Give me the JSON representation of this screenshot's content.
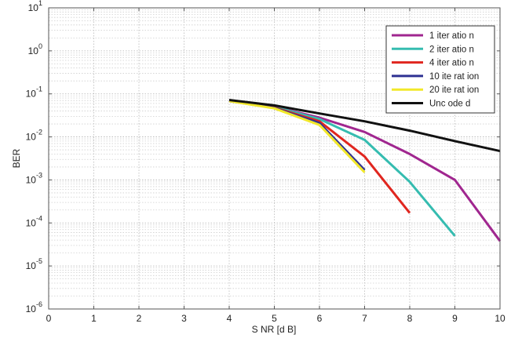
{
  "chart_data": {
    "type": "line",
    "title": "",
    "xlabel": "S NR [d B]",
    "ylabel": "BER",
    "xlim": [
      0,
      10
    ],
    "ylim": [
      1e-06,
      10
    ],
    "y_scale": "log",
    "grid": true,
    "legend_position": "top-right",
    "x_ticks": [
      0,
      1,
      2,
      3,
      4,
      5,
      6,
      7,
      8,
      9,
      10
    ],
    "x_tick_labels": [
      "0",
      "1",
      "2",
      "3",
      "4",
      "5",
      "6",
      "7",
      "8",
      "9",
      "10"
    ],
    "y_ticks": [
      {
        "value": 1e-06,
        "base": "10",
        "exp": "-6"
      },
      {
        "value": 1e-05,
        "base": "10",
        "exp": "-5"
      },
      {
        "value": 0.0001,
        "base": "10",
        "exp": "-4"
      },
      {
        "value": 0.001,
        "base": "10",
        "exp": "-3"
      },
      {
        "value": 0.01,
        "base": "10",
        "exp": "-2"
      },
      {
        "value": 0.1,
        "base": "10",
        "exp": "-1"
      },
      {
        "value": 1,
        "base": "10",
        "exp": "0"
      },
      {
        "value": 10,
        "base": "10",
        "exp": "1"
      }
    ],
    "series": [
      {
        "name": "1  iter atio n",
        "color": "#a0268f",
        "x": [
          4,
          5,
          6,
          7,
          8,
          9,
          10
        ],
        "y": [
          0.07,
          0.05,
          0.028,
          0.013,
          0.004,
          0.001,
          3.8e-05
        ]
      },
      {
        "name": "2  iter atio n",
        "color": "#35bcb0",
        "x": [
          4,
          5,
          6,
          7,
          8,
          9
        ],
        "y": [
          0.07,
          0.05,
          0.026,
          0.0085,
          0.0009,
          5e-05
        ]
      },
      {
        "name": "4  iter atio n",
        "color": "#e0261f",
        "x": [
          4,
          5,
          6,
          7,
          8
        ],
        "y": [
          0.07,
          0.048,
          0.023,
          0.0035,
          0.00017
        ]
      },
      {
        "name": "10  ite rat ion",
        "color": "#2e3192",
        "x": [
          4,
          5,
          6,
          7
        ],
        "y": [
          0.068,
          0.047,
          0.021,
          0.0017
        ]
      },
      {
        "name": "20  ite rat ion",
        "color": "#f2e82a",
        "x": [
          4,
          5,
          6,
          7
        ],
        "y": [
          0.068,
          0.046,
          0.019,
          0.0015
        ]
      },
      {
        "name": "Unc ode d",
        "color": "#111111",
        "x": [
          4,
          5,
          6,
          7,
          8,
          9,
          10
        ],
        "y": [
          0.072,
          0.054,
          0.035,
          0.023,
          0.014,
          0.008,
          0.0047
        ]
      }
    ]
  }
}
